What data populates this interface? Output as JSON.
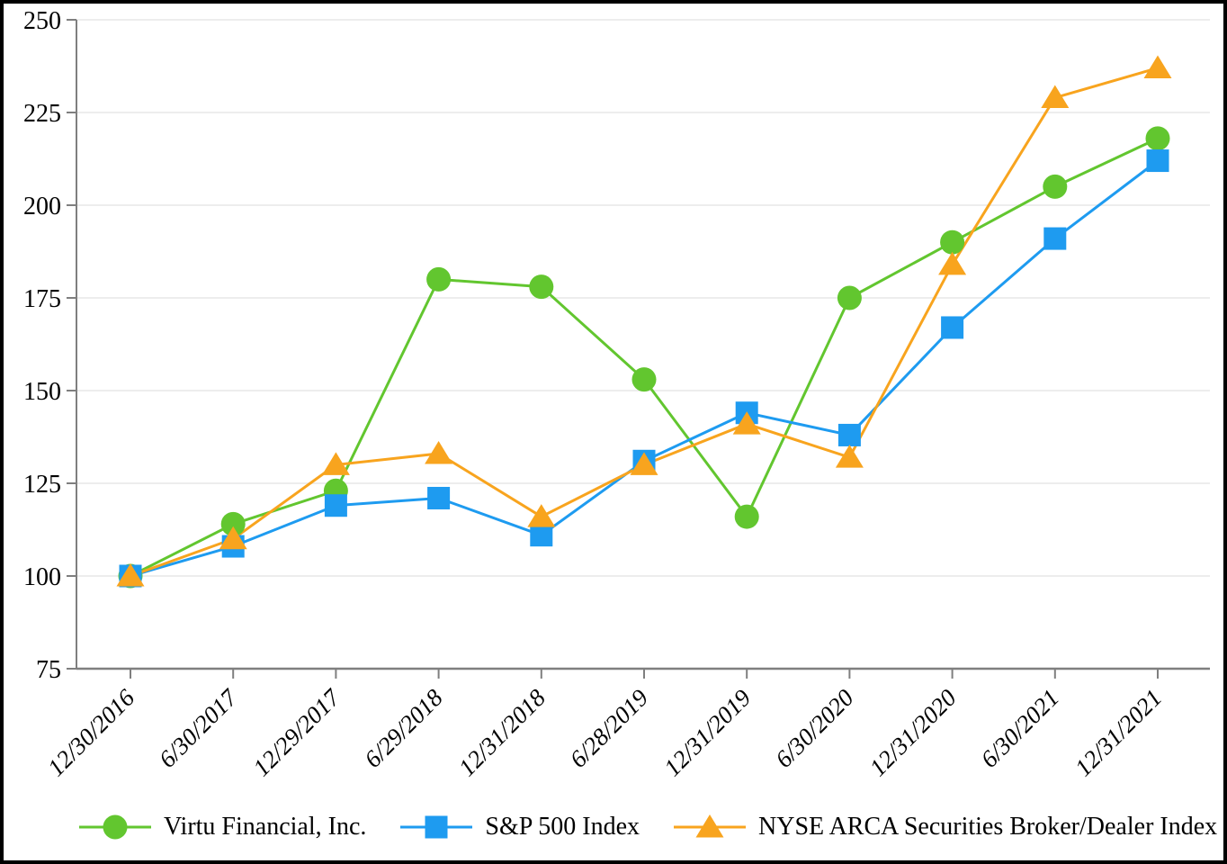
{
  "chart_data": {
    "type": "line",
    "title": "",
    "xlabel": "",
    "ylabel": "",
    "categories": [
      "12/30/2016",
      "6/30/2017",
      "12/29/2017",
      "6/29/2018",
      "12/31/2018",
      "6/28/2019",
      "12/31/2019",
      "6/30/2020",
      "12/31/2020",
      "6/30/2021",
      "12/31/2021"
    ],
    "series": [
      {
        "name": "Virtu Financial, Inc.",
        "marker": "circle",
        "color": "#62C62F",
        "values": [
          100,
          114,
          123,
          180,
          178,
          153,
          116,
          175,
          190,
          205,
          218
        ]
      },
      {
        "name": "S&P 500 Index",
        "marker": "square",
        "color": "#1E9BF0",
        "values": [
          100,
          108,
          119,
          121,
          111,
          131,
          144,
          138,
          167,
          191,
          212
        ]
      },
      {
        "name": "NYSE ARCA Securities Broker/Dealer Index",
        "marker": "triangle",
        "color": "#F8A41E",
        "values": [
          100,
          110,
          130,
          133,
          116,
          130,
          141,
          132,
          184,
          229,
          237
        ]
      }
    ],
    "y_ticks": [
      75,
      100,
      125,
      150,
      175,
      200,
      225,
      250
    ],
    "ylim": [
      75,
      250
    ],
    "grid": true,
    "grid_levels": [
      100,
      125,
      150,
      175,
      200,
      225,
      250
    ],
    "legend_position": "bottom",
    "style": {
      "grid_color": "#EDEDED",
      "axis_color": "#7F7F7F",
      "tick_label_color": "#000000",
      "background": "#FFFFFF",
      "border_color": "#000000"
    }
  }
}
